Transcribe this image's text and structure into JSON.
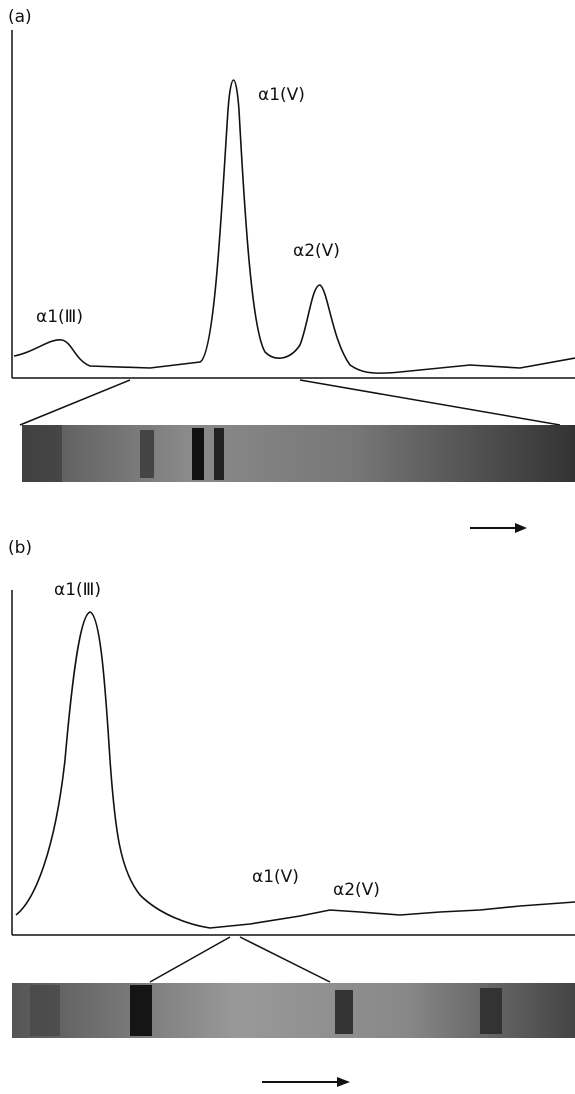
{
  "panels": [
    {
      "label": "(a)",
      "peaks": [
        "α1(Ⅲ)",
        "α1(V)",
        "α2(V)"
      ]
    },
    {
      "label": "(b)",
      "peaks": [
        "α1(Ⅲ)",
        "α1(V)",
        "α2(V)"
      ]
    }
  ]
}
